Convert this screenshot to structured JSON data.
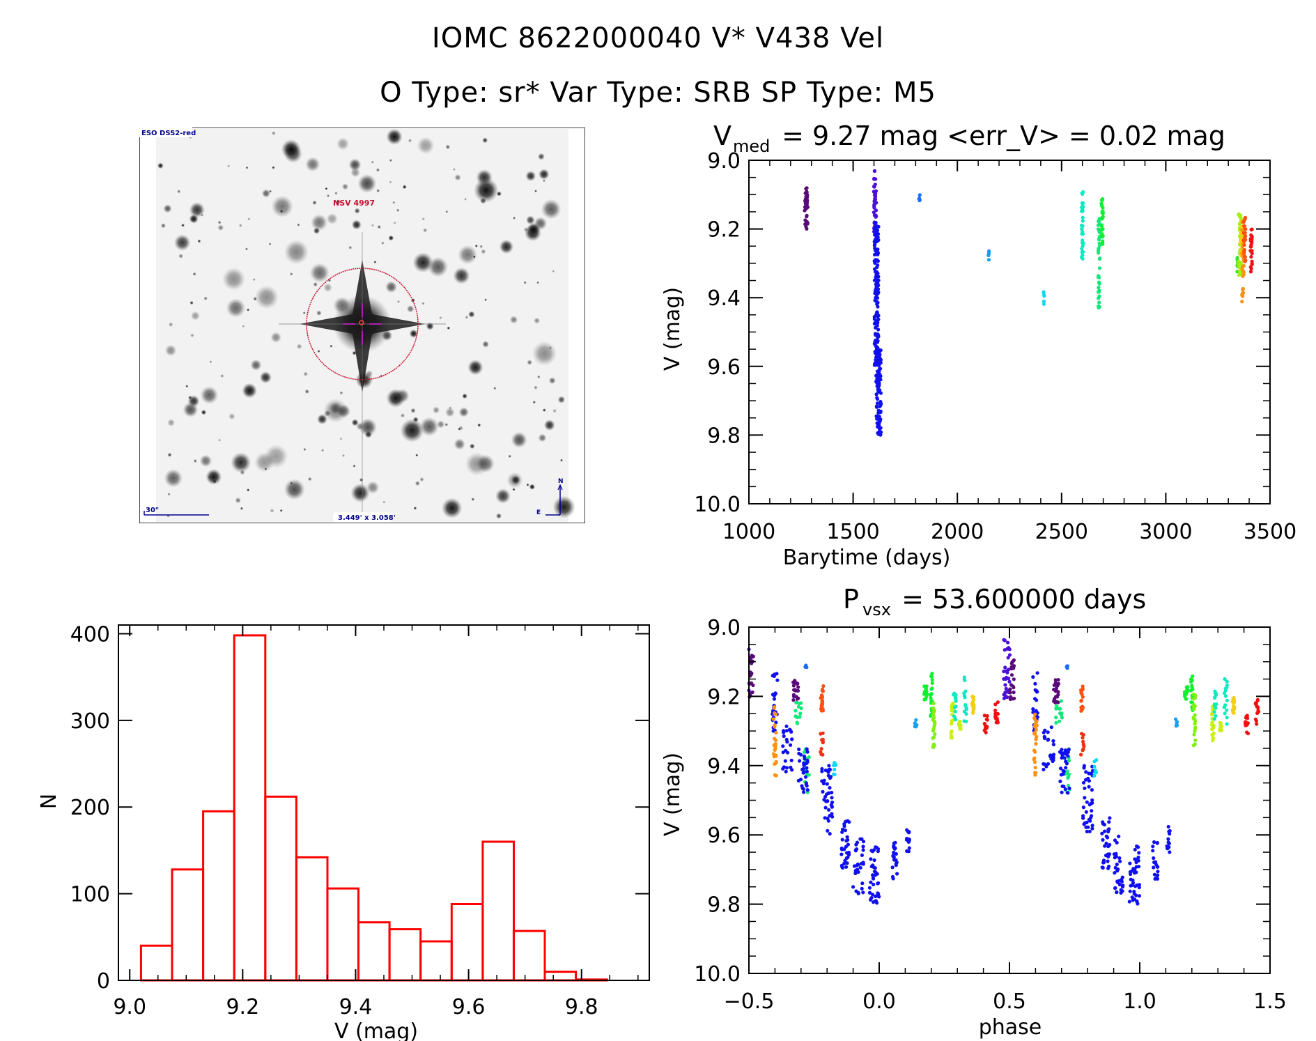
{
  "header": {
    "title_line1": "IOMC 8622000040    V* V438 Vel",
    "title_line2": "O Type: sr*   Var Type: SRB   SP Type: M5"
  },
  "sky_image": {
    "survey_label": "ESO DSS2-red",
    "target_label": "NSV 4997",
    "scale_bar_label": "30\"",
    "field_size_label": "3.449' x 3.058'",
    "compass_north": "N",
    "compass_east": "E",
    "circle_color": "#c8102e",
    "crosshair_color": "#8b008b",
    "annotation_color": "#00008b"
  },
  "chart_data": [
    {
      "id": "light_curve",
      "type": "scatter",
      "title": "V_med = 9.27 mag <err_V> = 0.02 mag",
      "title_main": "V",
      "title_sub": "med",
      "title_rest": " = 9.27 mag <err_V> = 0.02 mag",
      "xlabel": "Barytime (days)",
      "ylabel": "V (mag)",
      "xlim": [
        1000,
        3500
      ],
      "ylim": [
        10.0,
        9.0
      ],
      "y_inverted": true,
      "xticks": [
        1000,
        1500,
        2000,
        2500,
        3000,
        3500
      ],
      "xtick_labels": [
        "1000",
        "1500",
        "2000",
        "2500",
        "3000",
        "3500"
      ],
      "yticks": [
        9.0,
        9.2,
        9.4,
        9.6,
        9.8,
        10.0
      ],
      "ytick_labels": [
        "9.0",
        "9.2",
        "9.4",
        "9.6",
        "9.8",
        "10.0"
      ],
      "grid": false,
      "clusters": [
        {
          "x": 1275,
          "x_spread": 8,
          "y_min": 9.08,
          "y_max": 9.2,
          "color": "#5a0a78",
          "n": 40
        },
        {
          "x": 1605,
          "x_spread": 6,
          "y_min": 9.03,
          "y_max": 9.22,
          "color": "#4a10d8",
          "n": 50
        },
        {
          "x": 1612,
          "x_spread": 10,
          "y_min": 9.18,
          "y_max": 9.6,
          "color": "#1010ee",
          "n": 140
        },
        {
          "x": 1622,
          "x_spread": 12,
          "y_min": 9.55,
          "y_max": 9.8,
          "color": "#1010ee",
          "n": 90
        },
        {
          "x": 1818,
          "x_spread": 2,
          "y_min": 9.1,
          "y_max": 9.12,
          "color": "#1a6cff",
          "n": 5
        },
        {
          "x": 2150,
          "x_spread": 2,
          "y_min": 9.26,
          "y_max": 9.3,
          "color": "#14a0f0",
          "n": 6
        },
        {
          "x": 2415,
          "x_spread": 2,
          "y_min": 9.38,
          "y_max": 9.42,
          "color": "#10d8f0",
          "n": 6
        },
        {
          "x": 2600,
          "x_spread": 4,
          "y_min": 9.09,
          "y_max": 9.3,
          "color": "#10e8c0",
          "n": 35
        },
        {
          "x": 2680,
          "x_spread": 4,
          "y_min": 9.17,
          "y_max": 9.46,
          "color": "#10e878",
          "n": 35
        },
        {
          "x": 2695,
          "x_spread": 4,
          "y_min": 9.11,
          "y_max": 9.25,
          "color": "#10f030",
          "n": 30
        },
        {
          "x": 3345,
          "x_spread": 3,
          "y_min": 9.28,
          "y_max": 9.33,
          "color": "#40e020",
          "n": 8
        },
        {
          "x": 3355,
          "x_spread": 6,
          "y_min": 9.15,
          "y_max": 9.34,
          "color": "#a0f010",
          "n": 30
        },
        {
          "x": 3365,
          "x_spread": 6,
          "y_min": 9.17,
          "y_max": 9.28,
          "color": "#f0d010",
          "n": 25
        },
        {
          "x": 3370,
          "x_spread": 5,
          "y_min": 9.18,
          "y_max": 9.43,
          "color": "#ff9010",
          "n": 25
        },
        {
          "x": 3378,
          "x_spread": 5,
          "y_min": 9.16,
          "y_max": 9.3,
          "color": "#ff5010",
          "n": 25
        },
        {
          "x": 3410,
          "x_spread": 4,
          "y_min": 9.19,
          "y_max": 9.33,
          "color": "#f01010",
          "n": 25
        }
      ]
    },
    {
      "id": "histogram",
      "type": "bar",
      "title": "",
      "xlabel": "V (mag)",
      "ylabel": "N",
      "xlim": [
        8.98,
        9.92
      ],
      "ylim": [
        0,
        410
      ],
      "xticks": [
        9.0,
        9.2,
        9.4,
        9.6,
        9.8
      ],
      "xtick_labels": [
        "9.0",
        "9.2",
        "9.4",
        "9.6",
        "9.8"
      ],
      "yticks": [
        0,
        100,
        200,
        300,
        400
      ],
      "ytick_labels": [
        "0",
        "100",
        "200",
        "300",
        "400"
      ],
      "bin_start": 9.02,
      "bin_width": 0.055,
      "values": [
        40,
        128,
        195,
        398,
        212,
        142,
        106,
        67,
        59,
        45,
        88,
        160,
        57,
        10,
        1
      ],
      "bar_color": "#ff0000",
      "grid": false
    },
    {
      "id": "phase_curve",
      "type": "scatter",
      "title": "P_vsx = 53.600000 days",
      "title_main": "P",
      "title_sub": "vsx",
      "title_rest": " = 53.600000 days",
      "xlabel": "phase",
      "ylabel": "V (mag)",
      "xlim": [
        -0.5,
        1.5
      ],
      "ylim": [
        10.0,
        9.0
      ],
      "y_inverted": true,
      "period_days": 53.6,
      "xticks": [
        -0.5,
        0.0,
        0.5,
        1.0,
        1.5
      ],
      "xtick_labels": [
        "−0.5",
        "0.0",
        "0.5",
        "1.0",
        "1.5"
      ],
      "yticks": [
        9.0,
        9.2,
        9.4,
        9.6,
        9.8,
        10.0
      ],
      "ytick_labels": [
        "9.0",
        "9.2",
        "9.4",
        "9.6",
        "9.8",
        "10.0"
      ],
      "grid": false,
      "note": "Clusters listed for phase 0-1; the plot repeats them at phase-1 and phase+1 within xlim.",
      "clusters": [
        {
          "x": 0.49,
          "x_spread": 0.012,
          "y_min": 9.03,
          "y_max": 9.22,
          "color": "#4a10d8",
          "n": 30
        },
        {
          "x": 0.51,
          "x_spread": 0.008,
          "y_min": 9.08,
          "y_max": 9.21,
          "color": "#5a0a78",
          "n": 20
        },
        {
          "x": 0.6,
          "x_spread": 0.01,
          "y_min": 9.12,
          "y_max": 9.3,
          "color": "#1010ee",
          "n": 25
        },
        {
          "x": 0.6,
          "x_spread": 0.006,
          "y_min": 9.23,
          "y_max": 9.43,
          "color": "#ff9010",
          "n": 25
        },
        {
          "x": 0.65,
          "x_spread": 0.02,
          "y_min": 9.28,
          "y_max": 9.42,
          "color": "#1010ee",
          "n": 25
        },
        {
          "x": 0.68,
          "x_spread": 0.01,
          "y_min": 9.15,
          "y_max": 9.22,
          "color": "#5a0a78",
          "n": 20
        },
        {
          "x": 0.69,
          "x_spread": 0.012,
          "y_min": 9.21,
          "y_max": 9.28,
          "color": "#10e878",
          "n": 12
        },
        {
          "x": 0.72,
          "x_spread": 0.004,
          "y_min": 9.11,
          "y_max": 9.12,
          "color": "#1a6cff",
          "n": 5
        },
        {
          "x": 0.72,
          "x_spread": 0.012,
          "y_min": 9.35,
          "y_max": 9.48,
          "color": "#10e878",
          "n": 14
        },
        {
          "x": 0.71,
          "x_spread": 0.02,
          "y_min": 9.35,
          "y_max": 9.48,
          "color": "#1010ee",
          "n": 30
        },
        {
          "x": 0.78,
          "x_spread": 0.006,
          "y_min": 9.17,
          "y_max": 9.25,
          "color": "#ff5010",
          "n": 20
        },
        {
          "x": 0.78,
          "x_spread": 0.006,
          "y_min": 9.3,
          "y_max": 9.37,
          "color": "#f03010",
          "n": 10
        },
        {
          "x": 0.8,
          "x_spread": 0.02,
          "y_min": 9.4,
          "y_max": 9.6,
          "color": "#1010ee",
          "n": 40
        },
        {
          "x": 0.83,
          "x_spread": 0.005,
          "y_min": 9.38,
          "y_max": 9.43,
          "color": "#10d8f0",
          "n": 8
        },
        {
          "x": 0.87,
          "x_spread": 0.015,
          "y_min": 9.55,
          "y_max": 9.7,
          "color": "#1010ee",
          "n": 30
        },
        {
          "x": 0.92,
          "x_spread": 0.02,
          "y_min": 9.6,
          "y_max": 9.77,
          "color": "#1010ee",
          "n": 30
        },
        {
          "x": 0.98,
          "x_spread": 0.02,
          "y_min": 9.63,
          "y_max": 9.8,
          "color": "#1010ee",
          "n": 40
        },
        {
          "x": 1.06,
          "x_spread": 0.01,
          "y_min": 9.62,
          "y_max": 9.73,
          "color": "#1010ee",
          "n": 20
        },
        {
          "x": 1.11,
          "x_spread": 0.006,
          "y_min": 9.57,
          "y_max": 9.65,
          "color": "#1010ee",
          "n": 12
        },
        {
          "x": 1.14,
          "x_spread": 0.004,
          "y_min": 9.26,
          "y_max": 9.3,
          "color": "#14a0f0",
          "n": 6
        },
        {
          "x": 1.18,
          "x_spread": 0.008,
          "y_min": 9.17,
          "y_max": 9.21,
          "color": "#10f030",
          "n": 14
        },
        {
          "x": 1.2,
          "x_spread": 0.004,
          "y_min": 9.13,
          "y_max": 9.26,
          "color": "#10f030",
          "n": 18
        },
        {
          "x": 1.21,
          "x_spread": 0.004,
          "y_min": 9.19,
          "y_max": 9.35,
          "color": "#80f010",
          "n": 25
        },
        {
          "x": 1.28,
          "x_spread": 0.004,
          "y_min": 9.22,
          "y_max": 9.33,
          "color": "#c8f010",
          "n": 20
        },
        {
          "x": 1.29,
          "x_spread": 0.005,
          "y_min": 9.18,
          "y_max": 9.27,
          "color": "#10e8c0",
          "n": 15
        },
        {
          "x": 1.31,
          "x_spread": 0.004,
          "y_min": 9.27,
          "y_max": 9.31,
          "color": "#c8f010",
          "n": 10
        },
        {
          "x": 1.33,
          "x_spread": 0.006,
          "y_min": 9.14,
          "y_max": 9.28,
          "color": "#10e8c0",
          "n": 15
        },
        {
          "x": 1.36,
          "x_spread": 0.004,
          "y_min": 9.2,
          "y_max": 9.25,
          "color": "#f0d010",
          "n": 15
        },
        {
          "x": 1.41,
          "x_spread": 0.006,
          "y_min": 9.25,
          "y_max": 9.31,
          "color": "#f01010",
          "n": 12
        },
        {
          "x": 1.45,
          "x_spread": 0.006,
          "y_min": 9.21,
          "y_max": 9.28,
          "color": "#f01010",
          "n": 15
        }
      ]
    }
  ]
}
